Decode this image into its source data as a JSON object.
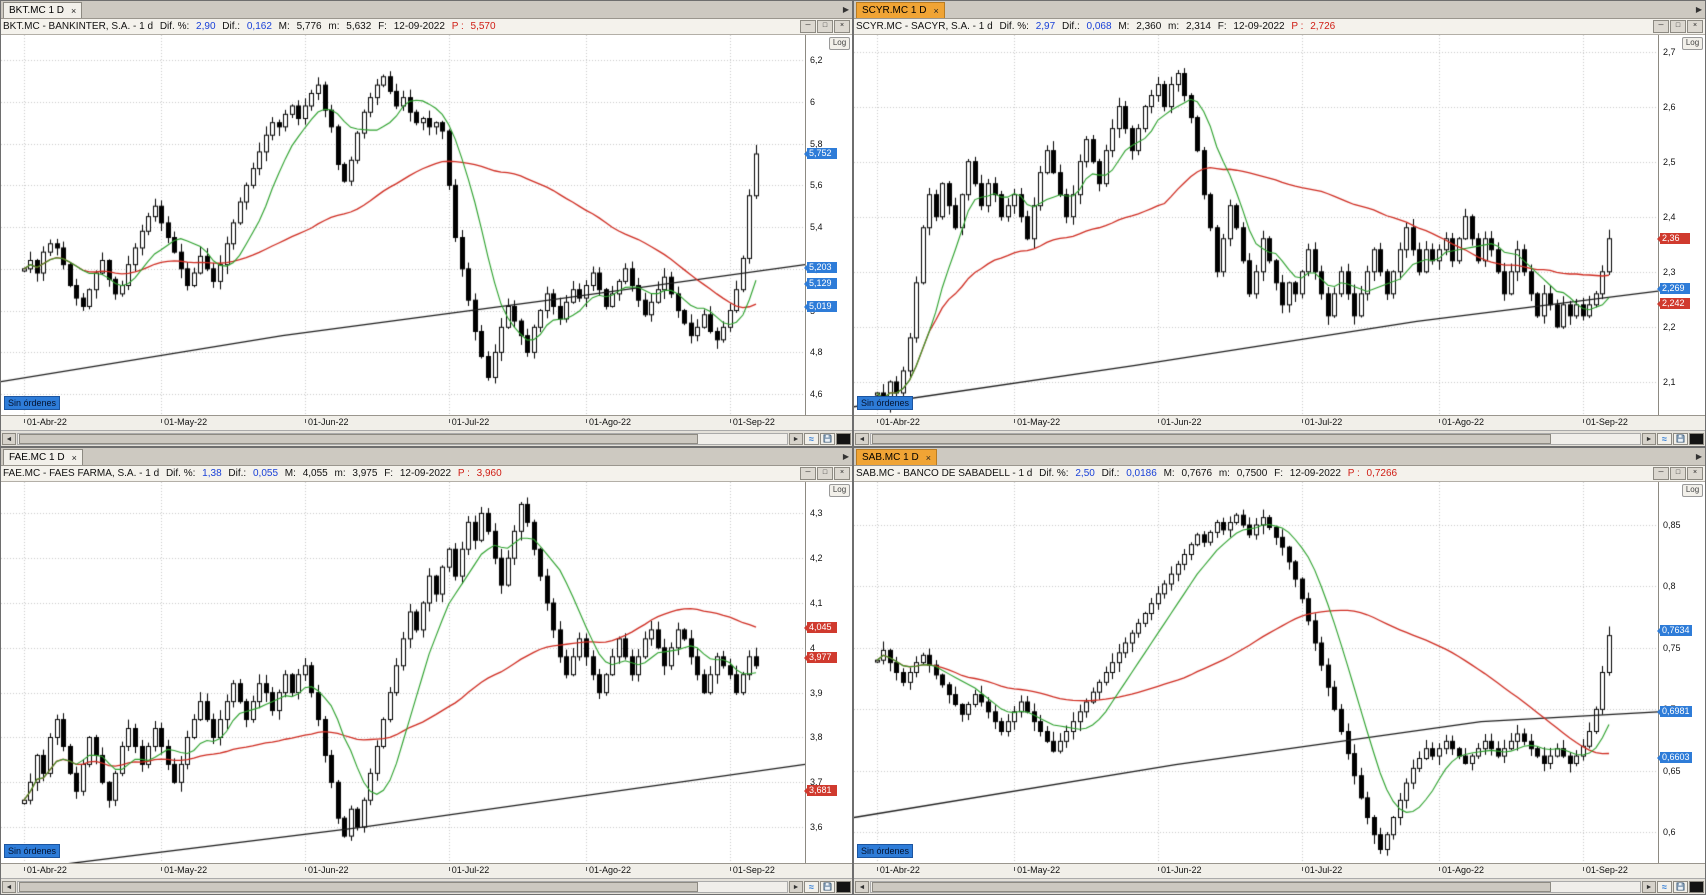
{
  "labels": {
    "dif_pct": "Dif. %:",
    "dif": "Dif.:",
    "max": "M:",
    "min": "m:",
    "date": "F:",
    "last": "P :",
    "no_orders": "Sin órdenes",
    "log": "Log"
  },
  "icons": {
    "close": "×",
    "minimize": "─",
    "maximize": "□",
    "tab_arrow": "▶",
    "left": "◄",
    "right": "►",
    "wave": "≈"
  },
  "panels": [
    {
      "tab": {
        "label": "BKT.MC 1 D",
        "active": false
      },
      "title": {
        "name": "BKT.MC - BANKINTER, S.A. - 1 d",
        "dif_pct": "2,90",
        "dif": "0,162",
        "max": "5,776",
        "min": "5,632",
        "date": "12-09-2022",
        "last": "5,570"
      },
      "price_tags": [
        {
          "label": "5,752",
          "price": 5.752,
          "color": "#2e7cd8"
        },
        {
          "label": "5,203",
          "price": 5.203,
          "color": "#2e7cd8"
        },
        {
          "label": "5,129",
          "price": 5.129,
          "color": "#2e7cd8"
        },
        {
          "label": "5,019",
          "price": 5.019,
          "color": "#2e7cd8"
        }
      ],
      "chart_data": {
        "type": "candlestick",
        "symbol": "BKT.MC",
        "timeframe": "1d",
        "scale": "Log",
        "ymin": 4.5,
        "ymax": 6.32,
        "slots": 123,
        "pad_left": 3,
        "month_starts": [
          0,
          21,
          43,
          65,
          86,
          108
        ],
        "x_labels": [
          "01-Abr-22",
          "01-May-22",
          "01-Jun-22",
          "01-Jul-22",
          "01-Ago-22",
          "01-Sep-22"
        ],
        "y_ticks": [
          {
            "label": "6,2",
            "price": 6.2
          },
          {
            "label": "6",
            "price": 6.0
          },
          {
            "label": "5,8",
            "price": 5.8
          },
          {
            "label": "5,6",
            "price": 5.6
          },
          {
            "label": "5,4",
            "price": 5.4
          },
          {
            "label": "5,2",
            "price": 5.2
          },
          {
            "label": "5",
            "price": 5.0
          },
          {
            "label": "4,8",
            "price": 4.8
          },
          {
            "label": "4,6",
            "price": 4.6
          }
        ],
        "closes": [
          5.2,
          5.24,
          5.18,
          5.28,
          5.32,
          5.3,
          5.22,
          5.12,
          5.06,
          5.02,
          5.1,
          5.18,
          5.24,
          5.15,
          5.08,
          5.12,
          5.22,
          5.3,
          5.38,
          5.45,
          5.5,
          5.42,
          5.35,
          5.28,
          5.2,
          5.12,
          5.18,
          5.26,
          5.2,
          5.14,
          5.22,
          5.32,
          5.42,
          5.52,
          5.6,
          5.68,
          5.76,
          5.84,
          5.9,
          5.88,
          5.94,
          5.98,
          5.92,
          5.98,
          6.04,
          6.08,
          5.96,
          5.88,
          5.7,
          5.62,
          5.72,
          5.85,
          5.95,
          6.02,
          6.08,
          6.12,
          6.05,
          5.98,
          6.02,
          5.95,
          5.9,
          5.92,
          5.88,
          5.9,
          5.86,
          5.6,
          5.35,
          5.2,
          5.05,
          4.9,
          4.78,
          4.68,
          4.8,
          4.92,
          5.02,
          4.95,
          4.88,
          4.8,
          4.92,
          5.0,
          5.08,
          5.02,
          4.96,
          5.04,
          5.1,
          5.06,
          5.12,
          5.18,
          5.1,
          5.02,
          5.08,
          5.14,
          5.2,
          5.12,
          5.05,
          4.98,
          5.04,
          5.1,
          5.16,
          5.08,
          5.0,
          4.94,
          4.88,
          4.92,
          4.98,
          4.9,
          4.86,
          4.92,
          5.0,
          5.1,
          5.25,
          5.55,
          5.75
        ],
        "sma_fast_window": 9,
        "sma_fast_color": "#2ba12b",
        "sma_slow_window": 45,
        "sma_slow_color": "#cf2b20",
        "long_ma": [
          [
            0,
            4.66
          ],
          [
            0.35,
            4.88
          ],
          [
            0.7,
            5.06
          ],
          [
            1,
            5.22
          ]
        ],
        "long_ma_color": "#1c1c1c"
      }
    },
    {
      "tab": {
        "label": "SCYR.MC 1 D",
        "active": true
      },
      "title": {
        "name": "SCYR.MC - SACYR, S.A. - 1 d",
        "dif_pct": "2,97",
        "dif": "0,068",
        "max": "2,360",
        "min": "2,314",
        "date": "12-09-2022",
        "last": "2,726"
      },
      "price_tags": [
        {
          "label": "2,36",
          "price": 2.36,
          "color": "#d03a2e"
        },
        {
          "label": "2,269",
          "price": 2.269,
          "color": "#2e7cd8"
        },
        {
          "label": "2,242",
          "price": 2.242,
          "color": "#d03a2e"
        }
      ],
      "chart_data": {
        "type": "candlestick",
        "symbol": "SCYR.MC",
        "timeframe": "1d",
        "scale": "Log",
        "ymin": 2.04,
        "ymax": 2.73,
        "slots": 123,
        "pad_left": 3,
        "month_starts": [
          0,
          21,
          43,
          65,
          86,
          108
        ],
        "x_labels": [
          "01-Abr-22",
          "01-May-22",
          "01-Jun-22",
          "01-Jul-22",
          "01-Ago-22",
          "01-Sep-22"
        ],
        "y_ticks": [
          {
            "label": "2,7",
            "price": 2.7
          },
          {
            "label": "2,6",
            "price": 2.6
          },
          {
            "label": "2,5",
            "price": 2.5
          },
          {
            "label": "2,4",
            "price": 2.4
          },
          {
            "label": "2,3",
            "price": 2.3
          },
          {
            "label": "2,2",
            "price": 2.2
          },
          {
            "label": "2,1",
            "price": 2.1
          }
        ],
        "closes": [
          2.08,
          2.06,
          2.1,
          2.08,
          2.12,
          2.18,
          2.28,
          2.38,
          2.44,
          2.4,
          2.46,
          2.42,
          2.38,
          2.44,
          2.5,
          2.46,
          2.42,
          2.46,
          2.44,
          2.4,
          2.42,
          2.44,
          2.4,
          2.36,
          2.42,
          2.48,
          2.52,
          2.48,
          2.44,
          2.4,
          2.44,
          2.5,
          2.54,
          2.5,
          2.46,
          2.52,
          2.56,
          2.6,
          2.56,
          2.52,
          2.56,
          2.6,
          2.62,
          2.64,
          2.6,
          2.64,
          2.66,
          2.62,
          2.58,
          2.52,
          2.44,
          2.38,
          2.3,
          2.36,
          2.42,
          2.38,
          2.32,
          2.26,
          2.3,
          2.36,
          2.32,
          2.28,
          2.24,
          2.28,
          2.26,
          2.3,
          2.34,
          2.3,
          2.26,
          2.22,
          2.26,
          2.3,
          2.26,
          2.22,
          2.26,
          2.3,
          2.34,
          2.3,
          2.26,
          2.3,
          2.34,
          2.38,
          2.34,
          2.3,
          2.34,
          2.32,
          2.34,
          2.36,
          2.32,
          2.36,
          2.4,
          2.36,
          2.32,
          2.36,
          2.34,
          2.3,
          2.26,
          2.3,
          2.34,
          2.3,
          2.26,
          2.22,
          2.26,
          2.24,
          2.2,
          2.24,
          2.22,
          2.24,
          2.22,
          2.24,
          2.26,
          2.3,
          2.36
        ],
        "sma_fast_window": 9,
        "sma_fast_color": "#2ba12b",
        "sma_slow_window": 45,
        "sma_slow_color": "#cf2b20",
        "long_ma": [
          [
            0,
            2.055
          ],
          [
            0.35,
            2.13
          ],
          [
            0.7,
            2.21
          ],
          [
            1,
            2.265
          ]
        ],
        "long_ma_color": "#1c1c1c"
      }
    },
    {
      "tab": {
        "label": "FAE.MC 1 D",
        "active": false
      },
      "title": {
        "name": "FAE.MC - FAES FARMA, S.A. - 1 d",
        "dif_pct": "1,38",
        "dif": "0,055",
        "max": "4,055",
        "min": "3,975",
        "date": "12-09-2022",
        "last": "3,960"
      },
      "price_tags": [
        {
          "label": "4,045",
          "price": 4.045,
          "color": "#d03a2e"
        },
        {
          "label": "3,977",
          "price": 3.977,
          "color": "#d03a2e"
        },
        {
          "label": "3,681",
          "price": 3.681,
          "color": "#d03a2e"
        }
      ],
      "chart_data": {
        "type": "candlestick",
        "symbol": "FAE.MC",
        "timeframe": "1d",
        "scale": "Log",
        "ymin": 3.52,
        "ymax": 4.37,
        "slots": 123,
        "pad_left": 3,
        "month_starts": [
          0,
          21,
          43,
          65,
          86,
          108
        ],
        "x_labels": [
          "01-Abr-22",
          "01-May-22",
          "01-Jun-22",
          "01-Jul-22",
          "01-Ago-22",
          "01-Sep-22"
        ],
        "y_ticks": [
          {
            "label": "4,3",
            "price": 4.3
          },
          {
            "label": "4,2",
            "price": 4.2
          },
          {
            "label": "4,1",
            "price": 4.1
          },
          {
            "label": "4",
            "price": 4.0
          },
          {
            "label": "3,9",
            "price": 3.9
          },
          {
            "label": "3,8",
            "price": 3.8
          },
          {
            "label": "3,7",
            "price": 3.7
          },
          {
            "label": "3,6",
            "price": 3.6
          }
        ],
        "closes": [
          3.66,
          3.7,
          3.76,
          3.72,
          3.8,
          3.84,
          3.78,
          3.72,
          3.68,
          3.74,
          3.8,
          3.76,
          3.7,
          3.66,
          3.72,
          3.78,
          3.82,
          3.78,
          3.74,
          3.78,
          3.82,
          3.78,
          3.74,
          3.7,
          3.74,
          3.8,
          3.84,
          3.88,
          3.84,
          3.8,
          3.84,
          3.88,
          3.92,
          3.88,
          3.84,
          3.88,
          3.92,
          3.9,
          3.86,
          3.9,
          3.94,
          3.9,
          3.94,
          3.96,
          3.9,
          3.84,
          3.76,
          3.7,
          3.62,
          3.58,
          3.64,
          3.6,
          3.66,
          3.72,
          3.78,
          3.84,
          3.9,
          3.96,
          4.02,
          4.08,
          4.04,
          4.1,
          4.16,
          4.12,
          4.18,
          4.22,
          4.16,
          4.22,
          4.28,
          4.24,
          4.3,
          4.26,
          4.2,
          4.14,
          4.2,
          4.26,
          4.32,
          4.28,
          4.22,
          4.16,
          4.1,
          4.04,
          3.98,
          3.94,
          3.98,
          4.02,
          3.98,
          3.94,
          3.9,
          3.94,
          3.98,
          4.02,
          3.98,
          3.94,
          3.98,
          4.02,
          4.04,
          4.0,
          3.96,
          4.0,
          4.04,
          4.02,
          3.98,
          3.94,
          3.9,
          3.94,
          3.98,
          3.96,
          3.94,
          3.9,
          3.94,
          3.98,
          3.96
        ],
        "sma_fast_window": 9,
        "sma_fast_color": "#2ba12b",
        "sma_slow_window": 45,
        "sma_slow_color": "#cf2b20",
        "long_ma": [
          [
            0,
            3.5
          ],
          [
            0.45,
            3.6
          ],
          [
            1,
            3.74
          ]
        ],
        "long_ma_color": "#1c1c1c"
      }
    },
    {
      "tab": {
        "label": "SAB.MC 1 D",
        "active": true
      },
      "title": {
        "name": "SAB.MC - BANCO DE SABADELL - 1 d",
        "dif_pct": "2,50",
        "dif": "0,0186",
        "max": "0,7676",
        "min": "0,7500",
        "date": "12-09-2022",
        "last": "0,7266"
      },
      "price_tags": [
        {
          "label": "0,7634",
          "price": 0.7634,
          "color": "#2e7cd8"
        },
        {
          "label": "0,6981",
          "price": 0.6981,
          "color": "#2e7cd8"
        },
        {
          "label": "0,6603",
          "price": 0.6603,
          "color": "#2e7cd8"
        }
      ],
      "chart_data": {
        "type": "candlestick",
        "symbol": "SAB.MC",
        "timeframe": "1d",
        "scale": "Log",
        "ymin": 0.575,
        "ymax": 0.885,
        "slots": 123,
        "pad_left": 3,
        "month_starts": [
          0,
          21,
          43,
          65,
          86,
          108
        ],
        "x_labels": [
          "01-Abr-22",
          "01-May-22",
          "01-Jun-22",
          "01-Jul-22",
          "01-Ago-22",
          "01-Sep-22"
        ],
        "y_ticks": [
          {
            "label": "0,85",
            "price": 0.85
          },
          {
            "label": "0,8",
            "price": 0.8
          },
          {
            "label": "0,75",
            "price": 0.75
          },
          {
            "label": "0,7",
            "price": 0.7
          },
          {
            "label": "0,65",
            "price": 0.65
          },
          {
            "label": "0,6",
            "price": 0.6
          }
        ],
        "closes": [
          0.74,
          0.748,
          0.738,
          0.73,
          0.722,
          0.73,
          0.738,
          0.744,
          0.736,
          0.728,
          0.72,
          0.712,
          0.704,
          0.696,
          0.704,
          0.712,
          0.706,
          0.698,
          0.69,
          0.682,
          0.69,
          0.698,
          0.706,
          0.698,
          0.69,
          0.682,
          0.674,
          0.666,
          0.674,
          0.682,
          0.69,
          0.698,
          0.706,
          0.714,
          0.722,
          0.73,
          0.738,
          0.746,
          0.754,
          0.762,
          0.77,
          0.778,
          0.786,
          0.794,
          0.802,
          0.81,
          0.818,
          0.826,
          0.834,
          0.842,
          0.836,
          0.844,
          0.852,
          0.846,
          0.852,
          0.858,
          0.85,
          0.842,
          0.85,
          0.856,
          0.848,
          0.84,
          0.832,
          0.82,
          0.806,
          0.79,
          0.772,
          0.754,
          0.736,
          0.718,
          0.7,
          0.682,
          0.664,
          0.646,
          0.628,
          0.612,
          0.598,
          0.586,
          0.598,
          0.612,
          0.626,
          0.64,
          0.652,
          0.66,
          0.668,
          0.662,
          0.668,
          0.674,
          0.668,
          0.662,
          0.656,
          0.662,
          0.668,
          0.674,
          0.668,
          0.662,
          0.668,
          0.674,
          0.68,
          0.674,
          0.668,
          0.662,
          0.656,
          0.662,
          0.668,
          0.662,
          0.656,
          0.662,
          0.67,
          0.682,
          0.7,
          0.73,
          0.76
        ],
        "sma_fast_window": 9,
        "sma_fast_color": "#2ba12b",
        "sma_slow_window": 45,
        "sma_slow_color": "#cf2b20",
        "long_ma": [
          [
            0,
            0.612
          ],
          [
            0.4,
            0.655
          ],
          [
            0.78,
            0.69
          ],
          [
            1,
            0.698
          ]
        ],
        "long_ma_color": "#1c1c1c"
      }
    }
  ]
}
